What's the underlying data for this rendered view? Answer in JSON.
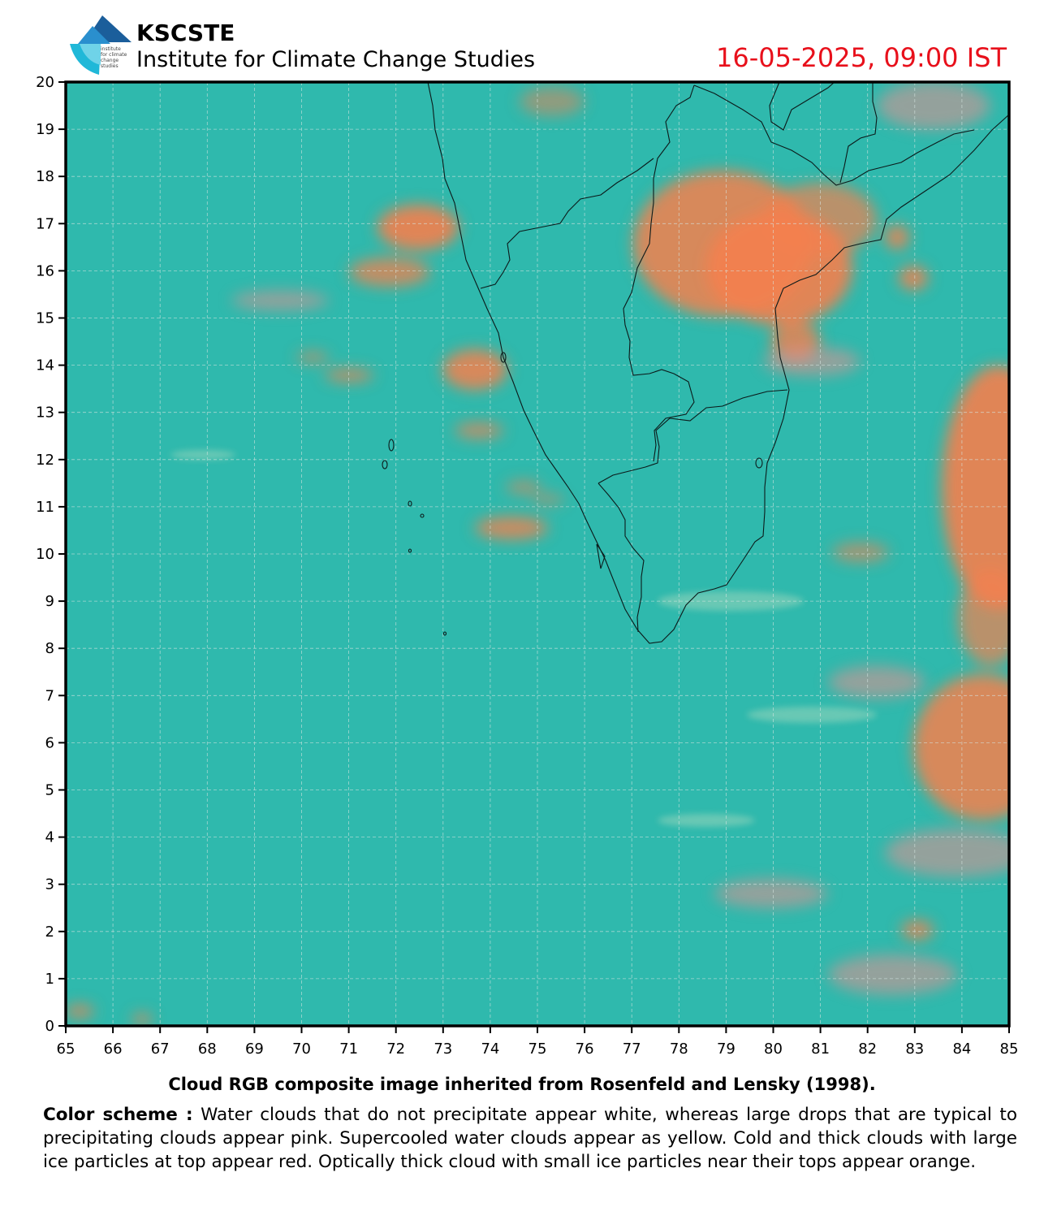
{
  "header": {
    "org_name": "KSCSTE",
    "org_subtitle": "Institute for Climate Change Studies",
    "timestamp": "16-05-2025, 09:00 IST",
    "logo_text": "institute for climate change studies"
  },
  "map": {
    "projection": "lat-lon",
    "lon_range": [
      65,
      85
    ],
    "lat_range": [
      0,
      20
    ],
    "x_ticks": [
      "65",
      "66",
      "67",
      "68",
      "69",
      "70",
      "71",
      "72",
      "73",
      "74",
      "75",
      "76",
      "77",
      "78",
      "79",
      "80",
      "81",
      "82",
      "83",
      "84",
      "85"
    ],
    "y_ticks": [
      "0",
      "1",
      "2",
      "3",
      "4",
      "5",
      "6",
      "7",
      "8",
      "9",
      "10",
      "11",
      "12",
      "13",
      "14",
      "15",
      "16",
      "17",
      "18",
      "19",
      "20"
    ],
    "grid": true,
    "background_color": "#2fb9ad",
    "cloud_color": "#f4804e"
  },
  "caption": "Cloud RGB composite image inherited from Rosenfeld and Lensky (1998).",
  "color_scheme": {
    "label": "Color scheme :",
    "text": "Water clouds that do not precipitate appear white, whereas large drops that are typical to precipitating clouds appear pink. Supercooled water clouds appear as yellow. Cold and thick clouds with large ice particles at top appear red. Optically thick cloud with small ice particles near their tops appear orange."
  }
}
